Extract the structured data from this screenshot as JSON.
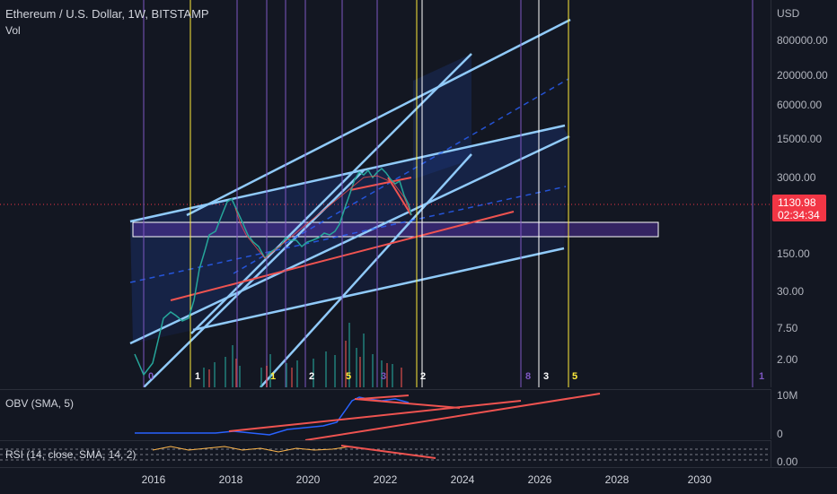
{
  "symbol": {
    "title": "Ethereum / U.S. Dollar, 1W, BITSTAMP",
    "volume_label": "Vol"
  },
  "price_axis": {
    "currency": "USD",
    "labels": [
      "800000.00",
      "200000.00",
      "60000.00",
      "15000.00",
      "3000.00",
      "150.00",
      "30.00",
      "7.50",
      "2.00"
    ],
    "current_price": "1130.98",
    "countdown": "02:34:34",
    "current_color": "#f23645"
  },
  "obv": {
    "label": "OBV (SMA, 5)",
    "axis_labels": [
      "10M",
      "0"
    ]
  },
  "rsi": {
    "label": "RSI (14, close, SMA, 14, 2)",
    "axis_labels": [
      "0.00"
    ]
  },
  "time_axis": {
    "labels": [
      "2016",
      "2018",
      "2020",
      "2022",
      "2024",
      "2026",
      "2028",
      "2030"
    ]
  },
  "cycle_markers": [
    "0",
    "1",
    "1",
    "2",
    "5",
    "3",
    "2",
    "8",
    "3",
    "5",
    "1"
  ],
  "colors": {
    "channel": "#90caf9",
    "trend": "#ef5350",
    "cycle_yellow": "#ffeb3b",
    "cycle_purple": "#7e57c2",
    "cycle_white": "#ffffff",
    "box": "#5e35b1"
  }
}
